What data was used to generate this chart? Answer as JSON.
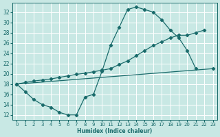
{
  "xlabel": "Humidex (Indice chaleur)",
  "bg_color": "#c8e8e4",
  "grid_color": "#ffffff",
  "line_color": "#1a6b6b",
  "xlim": [
    -0.5,
    23.5
  ],
  "ylim": [
    11.0,
    33.8
  ],
  "xticks": [
    0,
    1,
    2,
    3,
    4,
    5,
    6,
    7,
    8,
    9,
    10,
    11,
    12,
    13,
    14,
    15,
    16,
    17,
    18,
    19,
    20,
    21,
    22,
    23
  ],
  "yticks": [
    12,
    14,
    16,
    18,
    20,
    22,
    24,
    26,
    28,
    30,
    32
  ],
  "figsize": [
    3.2,
    2.0
  ],
  "dpi": 100,
  "curve1_x": [
    0,
    1,
    2,
    3,
    4,
    5,
    6,
    7,
    8,
    9,
    10,
    11,
    12,
    13,
    14,
    15,
    16,
    17,
    18,
    19,
    20,
    21
  ],
  "curve1_y": [
    18,
    16.5,
    15,
    14,
    13.5,
    12.5,
    12,
    12,
    15.5,
    16,
    20.5,
    25.5,
    29,
    32.5,
    33,
    32.5,
    32,
    30.5,
    28.5,
    27,
    24.5,
    21
  ],
  "line2_x": [
    0,
    23
  ],
  "line2_y": [
    18,
    21
  ],
  "line3_x": [
    0,
    1,
    2,
    3,
    4,
    5,
    6,
    7,
    8,
    9,
    10,
    11,
    12,
    13,
    14,
    15,
    16,
    17,
    18,
    19,
    20,
    21,
    22
  ],
  "line3_y": [
    18,
    18.3,
    18.6,
    18.8,
    19.0,
    19.3,
    19.6,
    19.9,
    20.1,
    20.4,
    20.7,
    21.0,
    21.8,
    22.5,
    23.5,
    24.5,
    25.5,
    26.2,
    27.0,
    27.5,
    27.5,
    28.0,
    28.5
  ],
  "lw": 0.9,
  "ms": 2.2
}
